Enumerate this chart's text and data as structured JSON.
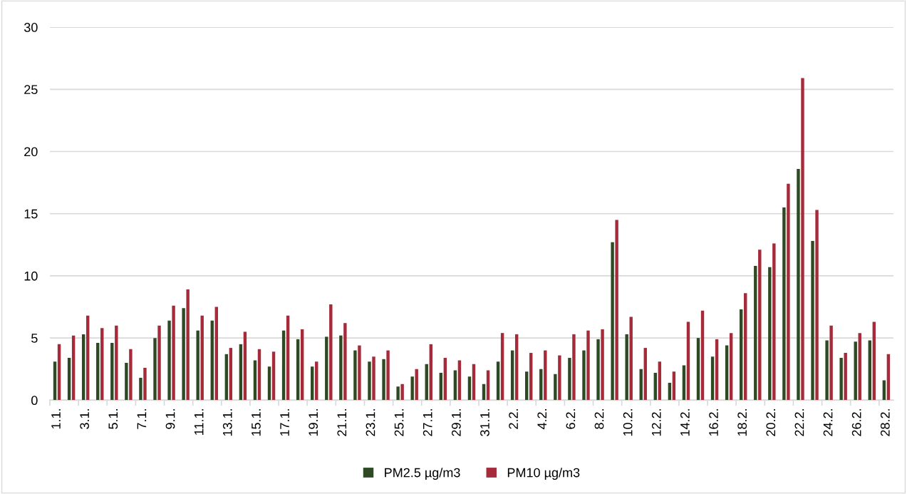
{
  "chart_data": {
    "type": "bar",
    "categories": [
      "1.1.",
      null,
      "3.1.",
      null,
      "5.1.",
      null,
      "7.1.",
      null,
      "9.1.",
      null,
      "11.1.",
      null,
      "13.1.",
      null,
      "15.1.",
      null,
      "17.1.",
      null,
      "19.1.",
      null,
      "21.1.",
      null,
      "23.1.",
      null,
      "25.1.",
      null,
      "27.1.",
      null,
      "29.1.",
      null,
      "31.1.",
      null,
      "2.2.",
      null,
      "4.2.",
      null,
      "6.2.",
      null,
      "8.2.",
      null,
      "10.2.",
      null,
      "12.2.",
      null,
      "14.2.",
      null,
      "16.2.",
      null,
      "18.2.",
      null,
      "20.2.",
      null,
      "22.2.",
      null,
      "24.2.",
      null,
      "26.2.",
      null,
      "28.2."
    ],
    "series": [
      {
        "name": "PM2.5 µg/m3",
        "color": "#2e4a24",
        "values": [
          3.1,
          3.4,
          5.3,
          4.6,
          4.6,
          3.0,
          1.8,
          5.0,
          6.4,
          7.4,
          5.6,
          6.4,
          3.7,
          4.5,
          3.2,
          2.7,
          5.6,
          4.9,
          2.7,
          5.1,
          5.2,
          4.0,
          3.1,
          3.3,
          1.1,
          1.9,
          2.9,
          2.2,
          2.4,
          1.9,
          1.3,
          3.1,
          4.0,
          2.3,
          2.5,
          2.1,
          3.4,
          4.0,
          4.9,
          12.7,
          5.3,
          2.5,
          2.2,
          1.4,
          2.8,
          5.0,
          3.5,
          4.4,
          7.3,
          10.8,
          10.7,
          15.5,
          18.6,
          12.8,
          4.8,
          3.4,
          4.7,
          4.8,
          1.6
        ]
      },
      {
        "name": "PM10 µg/m3",
        "color": "#a52a3a",
        "values": [
          4.5,
          5.2,
          6.8,
          5.8,
          6.0,
          4.1,
          2.6,
          6.0,
          7.6,
          8.9,
          6.8,
          7.5,
          4.2,
          5.5,
          4.1,
          3.9,
          6.8,
          5.7,
          3.1,
          7.7,
          6.2,
          4.4,
          3.5,
          4.0,
          1.3,
          2.5,
          4.5,
          3.4,
          3.2,
          2.9,
          2.4,
          5.4,
          5.3,
          3.8,
          4.0,
          3.6,
          5.3,
          5.6,
          5.7,
          14.5,
          6.7,
          4.2,
          3.1,
          2.3,
          6.3,
          7.2,
          4.9,
          5.4,
          8.6,
          12.1,
          12.6,
          17.4,
          25.9,
          15.3,
          6.0,
          3.8,
          5.4,
          6.3,
          3.7
        ]
      }
    ],
    "ylim": [
      0,
      30
    ],
    "yticks": [
      0,
      5,
      10,
      15,
      20,
      25,
      30
    ],
    "grid": "y",
    "legend": "bottom"
  }
}
